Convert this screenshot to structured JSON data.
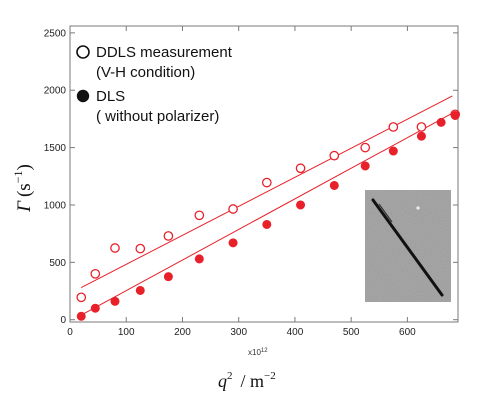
{
  "chart_data": {
    "type": "scatter",
    "ylabel": "Γ (s⁻¹)",
    "ylabel_symbol": "Γ",
    "ylabel_unit_open": "(s",
    "ylabel_unit_exp": "−1",
    "ylabel_unit_close": ")",
    "xlabel_symbol": "q",
    "xlabel_sup": "2",
    "xlabel_unit": "/ m",
    "xlabel_unit_exp": "−2",
    "x_multiplier_base": "x10",
    "x_multiplier_exp": "12",
    "xlim": [
      0,
      690
    ],
    "ylim": [
      -20,
      2560
    ],
    "xticks": [
      0,
      100,
      200,
      300,
      400,
      500,
      600
    ],
    "yticks": [
      0,
      500,
      1000,
      1500,
      2000,
      2500
    ],
    "legend_position": "top-left",
    "grid": false,
    "colors": {
      "data": "#e8202a",
      "frame": "#7a7a7a",
      "legend_marker": "#111111"
    },
    "series": [
      {
        "name": "DDLS measurement",
        "name_line2": "(V-H condition)",
        "marker": "open-circle",
        "x": [
          20,
          45,
          80,
          125,
          175,
          230,
          290,
          350,
          410,
          470,
          525,
          575,
          625,
          685
        ],
        "y": [
          195,
          400,
          625,
          620,
          730,
          910,
          965,
          1195,
          1320,
          1430,
          1500,
          1680,
          1680,
          1790
        ]
      },
      {
        "name": "DLS",
        "name_line2": "( without polarizer)",
        "marker": "filled-circle",
        "x": [
          20,
          45,
          80,
          125,
          175,
          230,
          290,
          350,
          410,
          470,
          525,
          575,
          625,
          660,
          685
        ],
        "y": [
          30,
          100,
          160,
          255,
          375,
          530,
          670,
          830,
          1000,
          1170,
          1340,
          1470,
          1600,
          1720,
          1780
        ]
      }
    ],
    "fit_lines": [
      {
        "series": "DDLS measurement",
        "x": [
          20,
          680
        ],
        "y": [
          280,
          1950
        ]
      },
      {
        "series": "DLS",
        "x": [
          20,
          680
        ],
        "y": [
          40,
          1800
        ]
      }
    ],
    "inset": {
      "content": "micrograph-rod",
      "position": "bottom-right"
    }
  }
}
